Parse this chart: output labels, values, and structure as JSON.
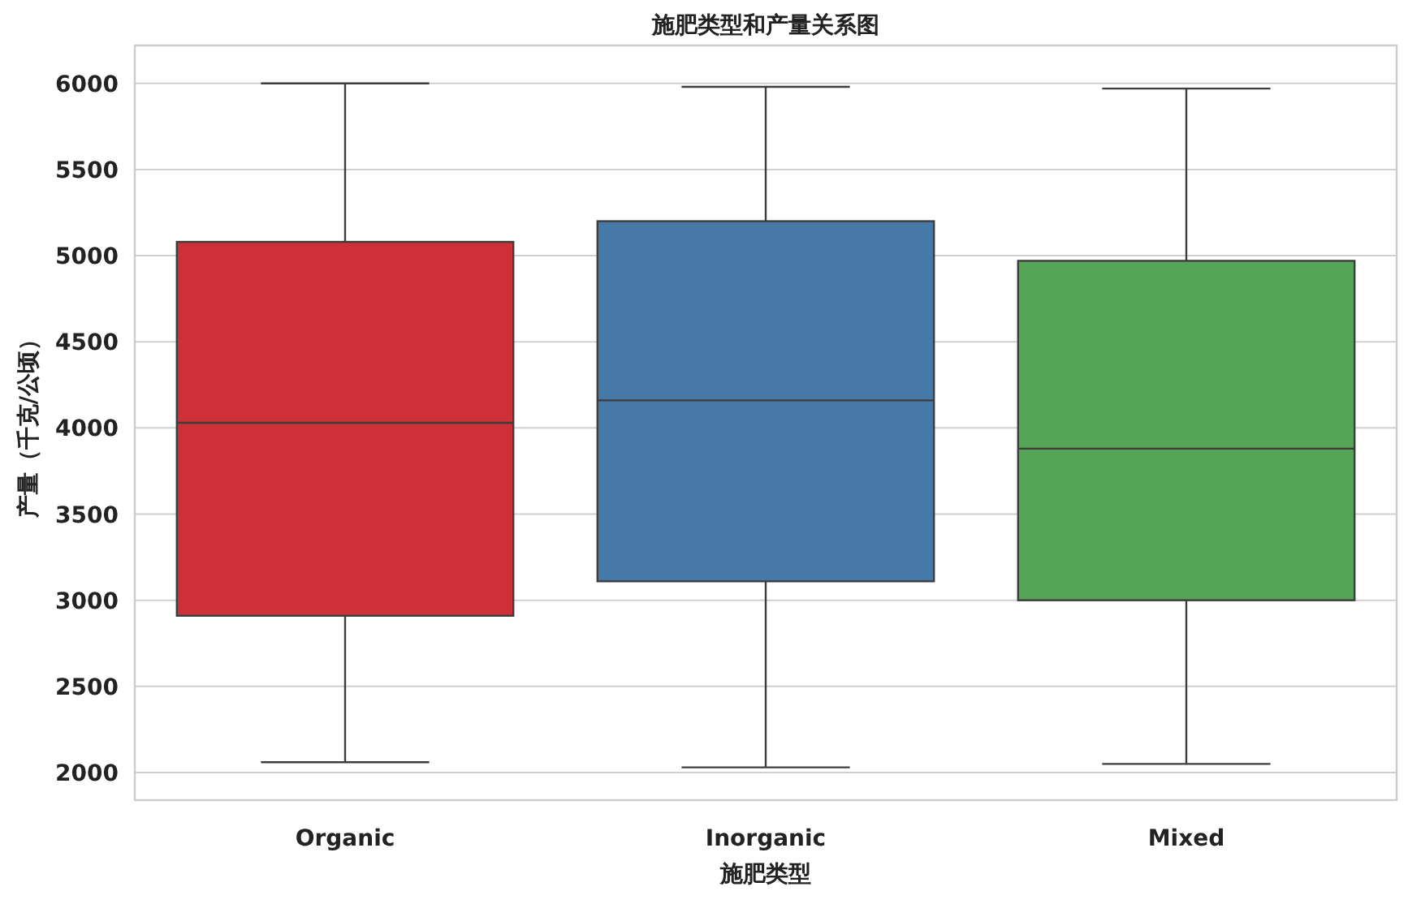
{
  "chart_data": {
    "type": "box",
    "title": "施肥类型和产量关系图",
    "xlabel": "施肥类型",
    "ylabel": "产量（千克/公顷）",
    "categories": [
      "Organic",
      "Inorganic",
      "Mixed"
    ],
    "boxes": [
      {
        "low": 2060,
        "q1": 2910,
        "median": 4030,
        "q3": 5080,
        "high": 6000
      },
      {
        "low": 2030,
        "q1": 3110,
        "median": 4160,
        "q3": 5200,
        "high": 5980
      },
      {
        "low": 2050,
        "q1": 3000,
        "median": 3880,
        "q3": 4970,
        "high": 5970
      }
    ],
    "colors": [
      "#cd3036",
      "#4679a8",
      "#56a557"
    ],
    "ylim": [
      1840,
      6220
    ],
    "yticks": [
      2000,
      2500,
      3000,
      3500,
      4000,
      4500,
      5000,
      5500,
      6000
    ],
    "grid": "y"
  }
}
